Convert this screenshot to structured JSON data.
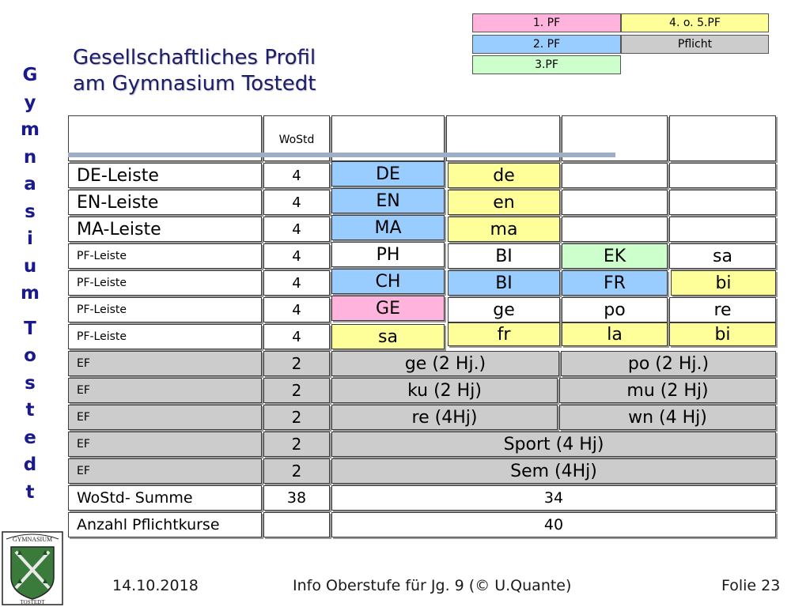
{
  "legend": {
    "pf1": "1. PF",
    "pf2": "2. PF",
    "pf3": "3.PF",
    "pf45": "4. o. 5.PF",
    "pflicht": "Pflicht",
    "colors": {
      "pf1": "#ffb3dd",
      "pf2": "#99ccff",
      "pf3": "#ccffcc",
      "pf45": "#ffff99",
      "pflicht": "#cccccc"
    }
  },
  "sidebar": {
    "word1": [
      "G",
      "y",
      "m",
      "n",
      "a",
      "s",
      "i",
      "u",
      "m"
    ],
    "word2": [
      "T",
      "o",
      "s",
      "t",
      "e",
      "d",
      "t"
    ]
  },
  "title": {
    "line1": "Gesellschaftliches Profil",
    "line2": "am Gymnasium Tostedt"
  },
  "table": {
    "header_wostd": "WoStd",
    "rows": [
      {
        "label": "DE-Leiste",
        "hours": "4",
        "c1": "DE",
        "c2": "de",
        "c3": "",
        "c4": ""
      },
      {
        "label": "EN-Leiste",
        "hours": "4",
        "c1": "EN",
        "c2": "en",
        "c3": "",
        "c4": ""
      },
      {
        "label": "MA-Leiste",
        "hours": "4",
        "c1": "MA",
        "c2": "ma",
        "c3": "",
        "c4": ""
      },
      {
        "label": "PF-Leiste",
        "hours": "4",
        "c1": "PH",
        "c2": "BI",
        "c3": "EK",
        "c4": "sa"
      },
      {
        "label": "PF-Leiste",
        "hours": "4",
        "c1": "CH",
        "c2": "BI",
        "c3": "FR",
        "c4": "bi"
      },
      {
        "label": "PF-Leiste",
        "hours": "4",
        "c1": "GE",
        "c2": "ge",
        "c3": "po",
        "c4": "re"
      },
      {
        "label": "PF-Leiste",
        "hours": "4",
        "c1": "sa",
        "c2": "fr",
        "c3": "la",
        "c4": "bi"
      }
    ],
    "ef_rows": [
      {
        "label": "EF",
        "hours": "2",
        "a": "ge (2 Hj.)",
        "b": "po (2 Hj.)"
      },
      {
        "label": "EF",
        "hours": "2",
        "a": "ku (2 Hj)",
        "b": "mu (2 Hj)"
      },
      {
        "label": "EF",
        "hours": "2",
        "a": "re (4Hj)",
        "b": "wn (4 Hj)"
      }
    ],
    "ef_full": [
      {
        "label": "EF",
        "hours": "2",
        "value": "Sport (4 Hj)"
      },
      {
        "label": "EF",
        "hours": "2",
        "value": "Sem (4Hj)"
      }
    ],
    "sum": {
      "label": "WoStd- Summe",
      "hours": "38",
      "value": "34"
    },
    "pflicht": {
      "label": "Anzahl Pflichtkurse",
      "hours": "",
      "value": "40"
    }
  },
  "footer": {
    "date": "14.10.2018",
    "center": "Info Oberstufe für Jg. 9 (© U.Quante)",
    "slide": "Folie 23"
  }
}
